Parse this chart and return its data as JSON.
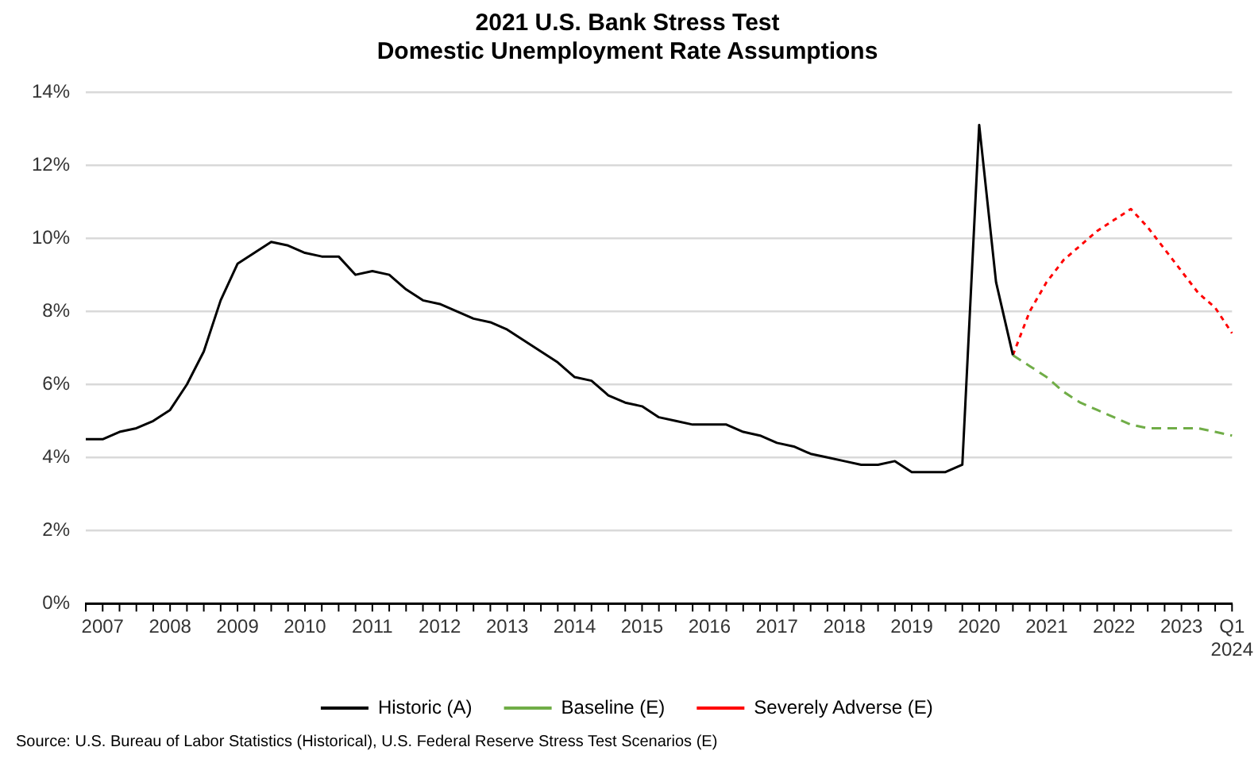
{
  "chart_data": {
    "type": "line",
    "title": "2021 U.S. Bank Stress Test\nDomestic Unemployment Rate Assumptions",
    "categories": [
      null,
      "2007",
      null,
      null,
      null,
      "2008",
      null,
      null,
      null,
      "2009",
      null,
      null,
      null,
      "2010",
      null,
      null,
      null,
      "2011",
      null,
      null,
      null,
      "2012",
      null,
      null,
      null,
      "2013",
      null,
      null,
      null,
      "2014",
      null,
      null,
      null,
      "2015",
      null,
      null,
      null,
      "2016",
      null,
      null,
      null,
      "2017",
      null,
      null,
      null,
      "2018",
      null,
      null,
      null,
      "2019",
      null,
      null,
      null,
      "2020",
      null,
      null,
      null,
      "2021",
      null,
      null,
      null,
      "2022",
      null,
      null,
      null,
      "2023",
      null,
      null,
      "Q1\n2024"
    ],
    "series": [
      {
        "name": "Historic (A)",
        "color": "#000000",
        "line_style": "solid",
        "values": [
          4.5,
          4.5,
          4.7,
          4.8,
          5.0,
          5.3,
          6.0,
          6.9,
          8.3,
          9.3,
          9.6,
          9.9,
          9.8,
          9.6,
          9.5,
          9.5,
          9.0,
          9.1,
          9.0,
          8.6,
          8.3,
          8.2,
          8.0,
          7.8,
          7.7,
          7.5,
          7.2,
          6.9,
          6.6,
          6.2,
          6.1,
          5.7,
          5.5,
          5.4,
          5.1,
          5.0,
          4.9,
          4.9,
          4.9,
          4.7,
          4.6,
          4.4,
          4.3,
          4.1,
          4.0,
          3.9,
          3.8,
          3.8,
          3.9,
          3.6,
          3.6,
          3.6,
          3.8,
          13.1,
          8.8,
          6.8,
          null,
          null,
          null,
          null,
          null,
          null,
          null,
          null,
          null,
          null,
          null,
          null,
          null
        ]
      },
      {
        "name": "Baseline (E)",
        "color": "#70ad47",
        "line_style": "dashed",
        "values": [
          null,
          null,
          null,
          null,
          null,
          null,
          null,
          null,
          null,
          null,
          null,
          null,
          null,
          null,
          null,
          null,
          null,
          null,
          null,
          null,
          null,
          null,
          null,
          null,
          null,
          null,
          null,
          null,
          null,
          null,
          null,
          null,
          null,
          null,
          null,
          null,
          null,
          null,
          null,
          null,
          null,
          null,
          null,
          null,
          null,
          null,
          null,
          null,
          null,
          null,
          null,
          null,
          null,
          null,
          null,
          6.8,
          6.5,
          6.2,
          5.8,
          5.5,
          5.3,
          5.1,
          4.9,
          4.8,
          4.8,
          4.8,
          4.8,
          4.7,
          4.6
        ]
      },
      {
        "name": "Severely Adverse (E)",
        "color": "#ff0000",
        "line_style": "dotted",
        "values": [
          null,
          null,
          null,
          null,
          null,
          null,
          null,
          null,
          null,
          null,
          null,
          null,
          null,
          null,
          null,
          null,
          null,
          null,
          null,
          null,
          null,
          null,
          null,
          null,
          null,
          null,
          null,
          null,
          null,
          null,
          null,
          null,
          null,
          null,
          null,
          null,
          null,
          null,
          null,
          null,
          null,
          null,
          null,
          null,
          null,
          null,
          null,
          null,
          null,
          null,
          null,
          null,
          null,
          null,
          null,
          6.8,
          8.0,
          8.8,
          9.4,
          9.8,
          10.2,
          10.5,
          10.8,
          10.3,
          9.7,
          9.1,
          8.5,
          8.1,
          7.4
        ]
      }
    ],
    "ylim": [
      0,
      14
    ],
    "yticks": [
      {
        "value": 0,
        "label": "0%"
      },
      {
        "value": 2,
        "label": "2%"
      },
      {
        "value": 4,
        "label": "4%"
      },
      {
        "value": 6,
        "label": "6%"
      },
      {
        "value": 8,
        "label": "8%"
      },
      {
        "value": 10,
        "label": "10%"
      },
      {
        "value": 12,
        "label": "12%"
      },
      {
        "value": 14,
        "label": "14%"
      }
    ],
    "grid": "y",
    "legend": "bottom",
    "marker": "none",
    "annotations": [
      "Source:  U.S. Bureau of Labor Statistics (Historical), U.S. Federal Reserve Stress Test Scenarios (E)"
    ]
  }
}
